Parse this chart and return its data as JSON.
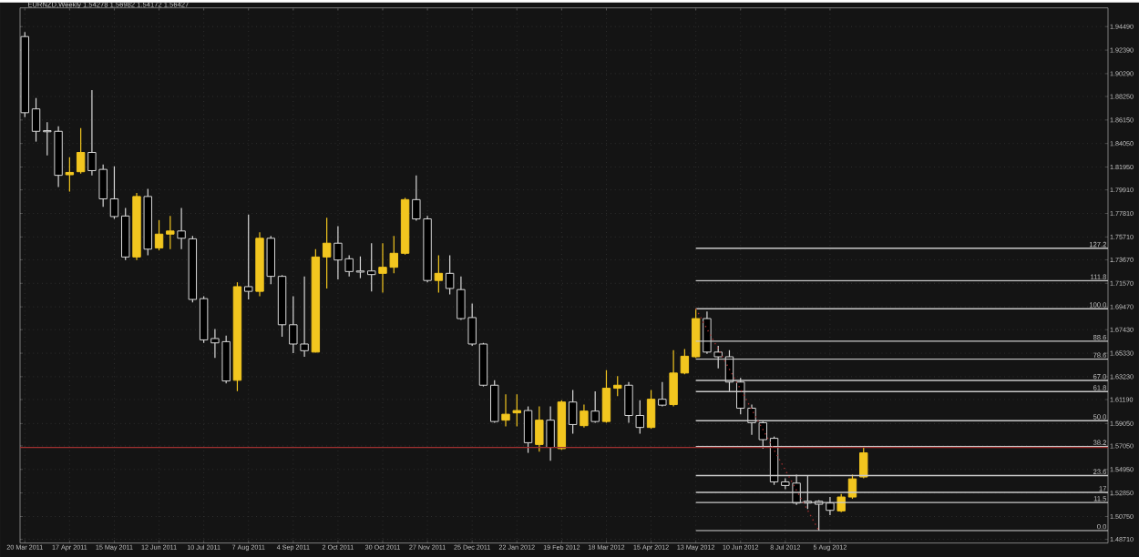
{
  "chart_data": {
    "type": "candlestick",
    "title": "EURNZD,Weekly  1.54278 1.56982 1.54172 1.56427",
    "x": [
      "2011-03-20",
      "2011-03-27",
      "2011-04-03",
      "2011-04-10",
      "2011-04-17",
      "2011-04-24",
      "2011-05-01",
      "2011-05-08",
      "2011-05-15",
      "2011-05-22",
      "2011-05-29",
      "2011-06-05",
      "2011-06-12",
      "2011-06-19",
      "2011-06-26",
      "2011-07-03",
      "2011-07-10",
      "2011-07-17",
      "2011-07-24",
      "2011-07-31",
      "2011-08-07",
      "2011-08-14",
      "2011-08-21",
      "2011-08-28",
      "2011-09-04",
      "2011-09-11",
      "2011-09-18",
      "2011-09-25",
      "2011-10-02",
      "2011-10-09",
      "2011-10-16",
      "2011-10-23",
      "2011-10-30",
      "2011-11-06",
      "2011-11-13",
      "2011-11-20",
      "2011-11-27",
      "2011-12-04",
      "2011-12-11",
      "2011-12-18",
      "2011-12-25",
      "2012-01-01",
      "2012-01-08",
      "2012-01-15",
      "2012-01-22",
      "2012-01-29",
      "2012-02-05",
      "2012-02-12",
      "2012-02-19",
      "2012-02-26",
      "2012-03-04",
      "2012-03-11",
      "2012-03-18",
      "2012-03-25",
      "2012-04-01",
      "2012-04-08",
      "2012-04-15",
      "2012-04-22",
      "2012-04-29",
      "2012-05-06",
      "2012-05-13",
      "2012-05-20",
      "2012-05-27",
      "2012-06-03",
      "2012-06-10",
      "2012-06-17",
      "2012-06-24",
      "2012-07-01",
      "2012-07-08",
      "2012-07-15",
      "2012-07-22",
      "2012-07-29",
      "2012-08-05",
      "2012-08-12",
      "2012-08-19",
      "2012-08-26"
    ],
    "ohlc": [
      [
        1.936,
        1.94,
        1.864,
        1.868
      ],
      [
        1.8714,
        1.8811,
        1.8422,
        1.8514
      ],
      [
        1.852,
        1.8596,
        1.8299,
        1.851
      ],
      [
        1.8514,
        1.8558,
        1.8017,
        1.8121
      ],
      [
        1.8126,
        1.8283,
        1.7975,
        1.8147
      ],
      [
        1.8153,
        1.8542,
        1.8137,
        1.8325
      ],
      [
        1.8325,
        1.8882,
        1.8121,
        1.8163
      ],
      [
        1.8174,
        1.8218,
        1.7839,
        1.7911
      ],
      [
        1.7911,
        1.8202,
        1.7732,
        1.7753
      ],
      [
        1.7758,
        1.7829,
        1.7365,
        1.7392
      ],
      [
        1.7392,
        1.7964,
        1.7365,
        1.7932
      ],
      [
        1.7932,
        1.8001,
        1.7408,
        1.7462
      ],
      [
        1.7473,
        1.7721,
        1.7451,
        1.7596
      ],
      [
        1.7596,
        1.7758,
        1.7462,
        1.7624
      ],
      [
        1.7624,
        1.7829,
        1.7462,
        1.7559
      ],
      [
        1.7554,
        1.758,
        1.6987,
        1.7013
      ],
      [
        1.702,
        1.7041,
        1.6625,
        1.6652
      ],
      [
        1.6664,
        1.6749,
        1.649,
        1.6625
      ],
      [
        1.6636,
        1.6689,
        1.6263,
        1.6285
      ],
      [
        1.6291,
        1.7166,
        1.6194,
        1.7127
      ],
      [
        1.7127,
        1.777,
        1.7013,
        1.7085
      ],
      [
        1.7085,
        1.7613,
        1.7041,
        1.7559
      ],
      [
        1.7559,
        1.758,
        1.7149,
        1.7219
      ],
      [
        1.7219,
        1.723,
        1.668,
        1.6787
      ],
      [
        1.6787,
        1.7041,
        1.6534,
        1.6615
      ],
      [
        1.6615,
        1.7219,
        1.6502,
        1.6555
      ],
      [
        1.6543,
        1.7462,
        1.654,
        1.7392
      ],
      [
        1.7392,
        1.7742,
        1.7111,
        1.7515
      ],
      [
        1.7515,
        1.7667,
        1.7191,
        1.7365
      ],
      [
        1.7376,
        1.7408,
        1.7219,
        1.7262
      ],
      [
        1.7267,
        1.7397,
        1.7203,
        1.7257
      ],
      [
        1.7267,
        1.7515,
        1.7085,
        1.7235
      ],
      [
        1.7246,
        1.7515,
        1.7073,
        1.73
      ],
      [
        1.73,
        1.758,
        1.7246,
        1.7425
      ],
      [
        1.7425,
        1.792,
        1.7413,
        1.7904
      ],
      [
        1.7904,
        1.8121,
        1.7716,
        1.7732
      ],
      [
        1.7732,
        1.7758,
        1.7166,
        1.7182
      ],
      [
        1.7182,
        1.7408,
        1.7073,
        1.7246
      ],
      [
        1.7246,
        1.7408,
        1.7057,
        1.7111
      ],
      [
        1.7101,
        1.7219,
        1.683,
        1.6842
      ],
      [
        1.6851,
        1.6976,
        1.6599,
        1.6615
      ],
      [
        1.6615,
        1.6625,
        1.6236,
        1.6247
      ],
      [
        1.6247,
        1.6291,
        1.5912,
        1.5923
      ],
      [
        1.5935,
        1.6166,
        1.588,
        1.5988
      ],
      [
        1.6,
        1.6166,
        1.588,
        1.6021
      ],
      [
        1.6021,
        1.6058,
        1.5643,
        1.5734
      ],
      [
        1.5718,
        1.6058,
        1.5653,
        1.5935
      ],
      [
        1.5935,
        1.6058,
        1.5572,
        1.5692
      ],
      [
        1.5681,
        1.6113,
        1.567,
        1.6097
      ],
      [
        1.6097,
        1.6204,
        1.5815,
        1.5896
      ],
      [
        1.5886,
        1.6074,
        1.587,
        1.6016
      ],
      [
        1.6016,
        1.6193,
        1.5912,
        1.5923
      ],
      [
        1.5923,
        1.6382,
        1.5912,
        1.622
      ],
      [
        1.622,
        1.6328,
        1.615,
        1.6247
      ],
      [
        1.6247,
        1.6275,
        1.5912,
        1.5977
      ],
      [
        1.5977,
        1.6113,
        1.5815,
        1.587
      ],
      [
        1.587,
        1.6204,
        1.5859,
        1.6122
      ],
      [
        1.6122,
        1.6275,
        1.6058,
        1.6069
      ],
      [
        1.6074,
        1.656,
        1.6058,
        1.6356
      ],
      [
        1.6356,
        1.6571,
        1.6345,
        1.6506
      ],
      [
        1.6501,
        1.6932,
        1.649,
        1.6842
      ],
      [
        1.6842,
        1.6906,
        1.6527,
        1.6543
      ],
      [
        1.6543,
        1.6599,
        1.6398,
        1.6501
      ],
      [
        1.6501,
        1.656,
        1.6194,
        1.6275
      ],
      [
        1.6275,
        1.6312,
        1.5988,
        1.6042
      ],
      [
        1.6042,
        1.6074,
        1.5805,
        1.5912
      ],
      [
        1.5912,
        1.5923,
        1.5681,
        1.5761
      ],
      [
        1.5773,
        1.5789,
        1.5357,
        1.5384
      ],
      [
        1.5384,
        1.5417,
        1.5319,
        1.5352
      ],
      [
        1.5373,
        1.5449,
        1.5179,
        1.5195
      ],
      [
        1.5211,
        1.5438,
        1.5141,
        1.5195
      ],
      [
        1.5211,
        1.5222,
        1.4952,
        1.5184
      ],
      [
        1.5195,
        1.5249,
        1.5087,
        1.513
      ],
      [
        1.5125,
        1.5276,
        1.5114,
        1.5249
      ],
      [
        1.5249,
        1.5449,
        1.5233,
        1.5411
      ],
      [
        1.5428,
        1.5698,
        1.5417,
        1.5643
      ]
    ],
    "series": [
      {
        "type": "line",
        "name": "127.2",
        "color": "#c8c8c8",
        "x": [
          "2012-05-13",
          "2013-01-26"
        ],
        "values": [
          1.747,
          1.747
        ]
      },
      {
        "type": "line",
        "name": "111.8",
        "color": "#c8c8c8",
        "x": [
          "2012-05-13",
          "2013-01-26"
        ],
        "values": [
          1.718,
          1.718
        ]
      },
      {
        "type": "line",
        "name": "100.0",
        "color": "#c8c8c8",
        "x": [
          "2012-05-13",
          "2013-01-26"
        ],
        "values": [
          1.693,
          1.693
        ]
      },
      {
        "type": "line",
        "name": "88.6",
        "color": "#c8c8c8",
        "x": [
          "2012-05-13",
          "2013-01-26"
        ],
        "values": [
          1.664,
          1.664
        ]
      },
      {
        "type": "line",
        "name": "78.6",
        "color": "#c8c8c8",
        "x": [
          "2012-05-13",
          "2013-01-26"
        ],
        "values": [
          1.648,
          1.648
        ]
      },
      {
        "type": "line",
        "name": "67.0",
        "color": "#c8c8c8",
        "x": [
          "2012-05-13",
          "2013-01-26"
        ],
        "values": [
          1.629,
          1.629
        ]
      },
      {
        "type": "line",
        "name": "61.8",
        "color": "#c8c8c8",
        "x": [
          "2012-05-13",
          "2013-01-26"
        ],
        "values": [
          1.619,
          1.619
        ]
      },
      {
        "type": "line",
        "name": "50.0",
        "color": "#c8c8c8",
        "x": [
          "2012-05-13",
          "2013-01-26"
        ],
        "values": [
          1.593,
          1.593
        ]
      },
      {
        "type": "line",
        "name": "38.2",
        "color": "#c8c8c8",
        "x": [
          "2012-05-13",
          "2013-01-26"
        ],
        "values": [
          1.57,
          1.57
        ]
      },
      {
        "type": "line",
        "name": "23.6",
        "color": "#c8c8c8",
        "x": [
          "2012-05-13",
          "2013-01-26"
        ],
        "values": [
          1.544,
          1.544
        ]
      },
      {
        "type": "line",
        "name": "17",
        "color": "#c8c8c8",
        "x": [
          "2012-05-13",
          "2013-01-26"
        ],
        "values": [
          1.529,
          1.529
        ]
      },
      {
        "type": "line",
        "name": "11.5",
        "color": "#c8c8c8",
        "x": [
          "2012-05-13",
          "2013-01-26"
        ],
        "values": [
          1.52,
          1.52
        ]
      },
      {
        "type": "line",
        "name": "0.0",
        "color": "#c8c8c8",
        "x": [
          "2012-05-13",
          "2013-01-26"
        ],
        "values": [
          1.495,
          1.495
        ]
      },
      {
        "type": "line",
        "color": "#a03030",
        "line_style": "dotted",
        "x": [
          "2012-05-13",
          "2012-07-29"
        ],
        "values": [
          1.693,
          1.495
        ]
      }
    ],
    "ref_lines": [
      {
        "axis": "y",
        "value": 1.5692,
        "color": "#a03030"
      }
    ],
    "xlim": [
      "2011-03-17",
      "2013-01-26"
    ],
    "ylim": [
      1.4838,
      1.9616
    ],
    "xticks": [
      {
        "value": "2011-03-20",
        "label": "20 Mar 2011"
      },
      {
        "value": "2011-04-17",
        "label": "17 Apr 2011"
      },
      {
        "value": "2011-05-15",
        "label": "15 May 2011"
      },
      {
        "value": "2011-06-12",
        "label": "12 Jun 2011"
      },
      {
        "value": "2011-07-10",
        "label": "10 Jul 2011"
      },
      {
        "value": "2011-08-07",
        "label": "7 Aug 2011"
      },
      {
        "value": "2011-09-04",
        "label": "4 Sep 2011"
      },
      {
        "value": "2011-10-02",
        "label": "2 Oct 2011"
      },
      {
        "value": "2011-10-30",
        "label": "30 Oct 2011"
      },
      {
        "value": "2011-11-27",
        "label": "27 Nov 2011"
      },
      {
        "value": "2011-12-25",
        "label": "25 Dec 2011"
      },
      {
        "value": "2012-01-22",
        "label": "22 Jan 2012"
      },
      {
        "value": "2012-02-19",
        "label": "19 Feb 2012"
      },
      {
        "value": "2012-03-18",
        "label": "18 Mar 2012"
      },
      {
        "value": "2012-04-15",
        "label": "15 Apr 2012"
      },
      {
        "value": "2012-05-13",
        "label": "13 May 2012"
      },
      {
        "value": "2012-06-10",
        "label": "10 Jun 2012"
      },
      {
        "value": "2012-07-08",
        "label": "8 Jul 2012"
      },
      {
        "value": "2012-08-05",
        "label": "5 Aug 2012"
      }
    ],
    "yticks": [
      {
        "value": 1.4871,
        "label": "1.48710"
      },
      {
        "value": 1.5075,
        "label": "1.50750"
      },
      {
        "value": 1.5285,
        "label": "1.52850"
      },
      {
        "value": 1.5495,
        "label": "1.54950"
      },
      {
        "value": 1.5705,
        "label": "1.57050"
      },
      {
        "value": 1.5905,
        "label": "1.59050"
      },
      {
        "value": 1.6119,
        "label": "1.61190"
      },
      {
        "value": 1.6323,
        "label": "1.63230"
      },
      {
        "value": 1.6533,
        "label": "1.65330"
      },
      {
        "value": 1.6743,
        "label": "1.67430"
      },
      {
        "value": 1.6947,
        "label": "1.69470"
      },
      {
        "value": 1.7157,
        "label": "1.71570"
      },
      {
        "value": 1.7367,
        "label": "1.73670"
      },
      {
        "value": 1.7571,
        "label": "1.75710"
      },
      {
        "value": 1.7781,
        "label": "1.77810"
      },
      {
        "value": 1.7991,
        "label": "1.79910"
      },
      {
        "value": 1.8195,
        "label": "1.81950"
      },
      {
        "value": 1.8405,
        "label": "1.84050"
      },
      {
        "value": 1.8615,
        "label": "1.86150"
      },
      {
        "value": 1.8825,
        "label": "1.88250"
      },
      {
        "value": 1.9029,
        "label": "1.90290"
      },
      {
        "value": 1.9239,
        "label": "1.92390"
      },
      {
        "value": 1.9449,
        "label": "1.94490"
      }
    ],
    "grid": true
  }
}
